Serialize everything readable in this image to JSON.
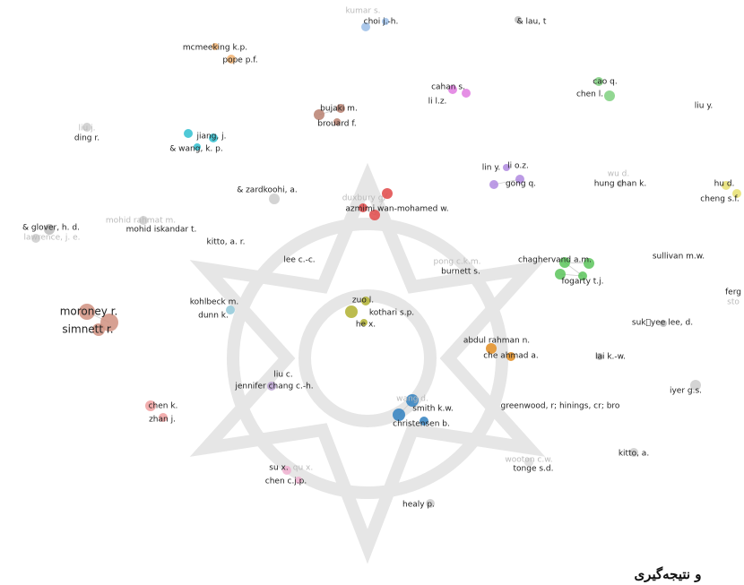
{
  "nodes": [
    {
      "label": "kumar s."
    },
    {
      "label": "choi j.-h."
    },
    {
      "label": "& lau, t"
    },
    {
      "label": "mcmeeking k.p."
    },
    {
      "label": "pope p.f."
    },
    {
      "label": "cahan s."
    },
    {
      "label": "li l.z."
    },
    {
      "label": "cao q."
    },
    {
      "label": "chen l."
    },
    {
      "label": "liu y."
    },
    {
      "label": "bujaki m."
    },
    {
      "label": "brouard f."
    },
    {
      "label": "jiang, j."
    },
    {
      "label": "liu j."
    },
    {
      "label": "ding r."
    },
    {
      "label": "& wang, k. p."
    },
    {
      "label": "lin y."
    },
    {
      "label": "li o.z."
    },
    {
      "label": "gong q."
    },
    {
      "label": "wu d."
    },
    {
      "label": "hung chan k."
    },
    {
      "label": "hu d."
    },
    {
      "label": "cheng s.f."
    },
    {
      "label": "& zardkoohi, a."
    },
    {
      "label": "duxbury g."
    },
    {
      "label": "azmimi wan-mohamed w."
    },
    {
      "label": "mohid rahmat m."
    },
    {
      "label": "mohid iskandar t."
    },
    {
      "label": "& glover, h. d."
    },
    {
      "label": "lawrence, j. e."
    },
    {
      "label": "kitto, a. r."
    },
    {
      "label": "lee c.-c."
    },
    {
      "label": "pong c.k.m."
    },
    {
      "label": "burnett s."
    },
    {
      "label": "chaghervand a.m."
    },
    {
      "label": "sullivan m.w."
    },
    {
      "label": "fogarty t.j."
    },
    {
      "label": "ferg"
    },
    {
      "label": "sto"
    },
    {
      "label": "kohlbeck m."
    },
    {
      "label": "zuo l."
    },
    {
      "label": "kothari s.p."
    },
    {
      "label": "he x."
    },
    {
      "label": "moroney r."
    },
    {
      "label": "simnett r."
    },
    {
      "label": "dunn k."
    },
    {
      "label": "suk\u0000yee lee, d."
    },
    {
      "label": "abdul rahman n."
    },
    {
      "label": "che ahmad a."
    },
    {
      "label": "lai k.-w."
    },
    {
      "label": "liu c."
    },
    {
      "label": "jennifer chang c.-h."
    },
    {
      "label": "iyer g.s."
    },
    {
      "label": "wang d."
    },
    {
      "label": "smith k.w."
    },
    {
      "label": "greenwood, r; hinings, cr; bro"
    },
    {
      "label": "chen k."
    },
    {
      "label": "christensen b."
    },
    {
      "label": "zhan j."
    },
    {
      "label": "wooton c.w."
    },
    {
      "label": "kitto, a."
    },
    {
      "label": "tonge s.d."
    },
    {
      "label": "su x."
    },
    {
      "label": "qu x."
    },
    {
      "label": "chen c.j.p."
    },
    {
      "label": "healy p."
    }
  ],
  "footer_text": "و نتیجه‌گیری"
}
